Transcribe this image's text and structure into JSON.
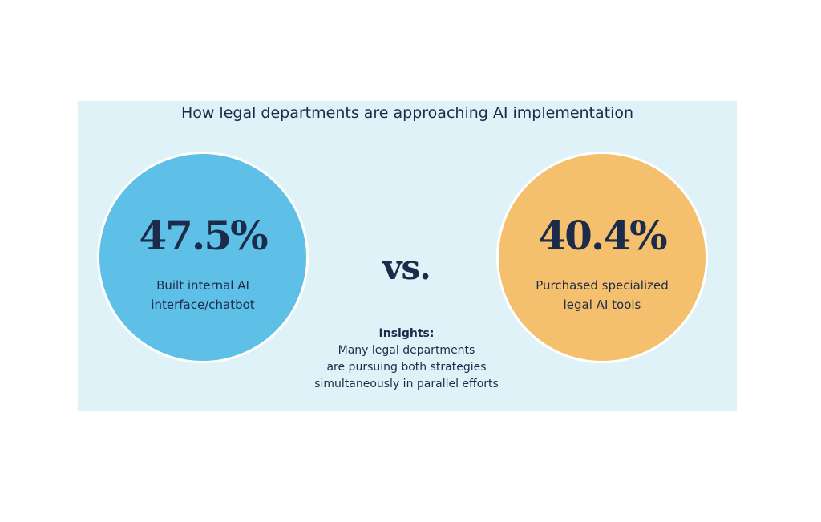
{
  "title": "How legal departments are approaching AI implementation",
  "separator": "vs.",
  "insights": {
    "heading": "Insights:",
    "lines": [
      "Many legal departments",
      "are pursuing both strategies",
      "simultaneously in parallel efforts"
    ]
  },
  "colors": {
    "background_panel": "#dff2f8",
    "left_circle": "#5ec0e6",
    "right_circle": "#f4c06e",
    "text": "#1d2b4a"
  },
  "chart_data": {
    "type": "table",
    "title": "How legal departments are approaching AI implementation",
    "items": [
      {
        "value_label": "47.5%",
        "value": 47.5,
        "description_lines": [
          "Built internal AI",
          "interface/chatbot"
        ],
        "color": "#5ec0e6"
      },
      {
        "value_label": "40.4%",
        "value": 40.4,
        "description_lines": [
          "Purchased specialized",
          "legal AI tools"
        ],
        "color": "#f4c06e"
      }
    ]
  }
}
